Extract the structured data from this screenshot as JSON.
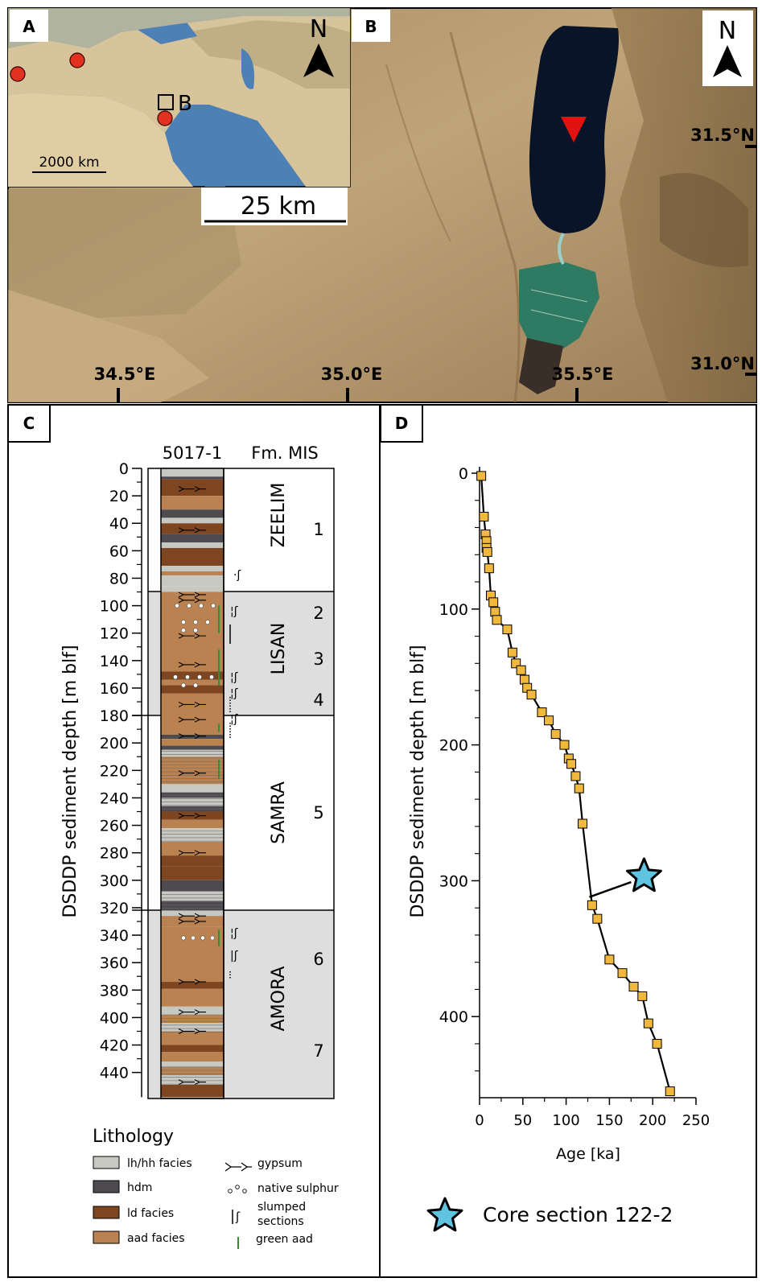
{
  "panel_a": {
    "label": "A",
    "north": "N",
    "box_label": "B",
    "scale": "2000 km"
  },
  "panel_b": {
    "label": "B",
    "north": "N",
    "scale": "25 km",
    "lon_labels": [
      "34.5°E",
      "35.0°E",
      "35.5°E"
    ],
    "lat_labels": [
      "31.5°N",
      "31.0°N"
    ]
  },
  "panel_c": {
    "label": "C",
    "core_title": "5017-1",
    "fm_mis_title": "Fm. MIS",
    "ylabel": "DSDDP sediment depth [m blf]",
    "depth_ticks": [
      "0",
      "20",
      "40",
      "60",
      "80",
      "100",
      "120",
      "140",
      "160",
      "180",
      "200",
      "220",
      "240",
      "260",
      "280",
      "300",
      "320",
      "340",
      "360",
      "380",
      "400",
      "420",
      "440"
    ],
    "formations": [
      "ZEELIM",
      "LISAN",
      "SAMRA",
      "AMORA"
    ],
    "mis": [
      "1",
      "2",
      "3",
      "4",
      "5",
      "6",
      "7"
    ],
    "legend_title": "Lithology",
    "legend": {
      "lh": "lh/hh facies",
      "hdm": "hdm",
      "ld": "ld facies",
      "aad": "aad facies",
      "gypsum": "gypsum",
      "sulphur": "native sulphur",
      "slumped": "slumped sections",
      "green": "green aad"
    },
    "colors": {
      "lh": "#c8c8c3",
      "hdm": "#4d4a50",
      "ld": "#7d4520",
      "aad": "#b98250",
      "green": "#3a8a3a",
      "fm_shade": "#dedede"
    }
  },
  "panel_d": {
    "label": "D",
    "legend_label": "Core section 122-2"
  },
  "chart_data": {
    "type": "scatter",
    "title": "",
    "xlabel": "Age [ka]",
    "ylabel": "DSDDP sediment depth [m blf]",
    "xlim": [
      0,
      250
    ],
    "ylim": [
      460,
      0
    ],
    "x_ticks": [
      "0",
      "50",
      "100",
      "150",
      "200",
      "250"
    ],
    "y_ticks": [
      "0",
      "100",
      "200",
      "300",
      "400"
    ],
    "grid": false,
    "marker_color": "#f0b93c",
    "series": [
      {
        "x": [
          2,
          5,
          7,
          8,
          8,
          9,
          11,
          13,
          16,
          18,
          20,
          32,
          38,
          42,
          48,
          52,
          55,
          60,
          72,
          80,
          88,
          98,
          103,
          106,
          111,
          115,
          119,
          130,
          136,
          150,
          165,
          178,
          188,
          195,
          205,
          220
        ],
        "y": [
          2,
          32,
          45,
          50,
          55,
          58,
          70,
          90,
          95,
          102,
          108,
          115,
          132,
          140,
          145,
          152,
          158,
          163,
          176,
          182,
          192,
          200,
          210,
          214,
          223,
          232,
          258,
          318,
          328,
          358,
          368,
          378,
          385,
          405,
          420,
          455
        ]
      }
    ],
    "annotation": {
      "label": "Core section 122-2",
      "x": 125,
      "y": 312,
      "star_x": 190,
      "star_y": 298
    }
  }
}
